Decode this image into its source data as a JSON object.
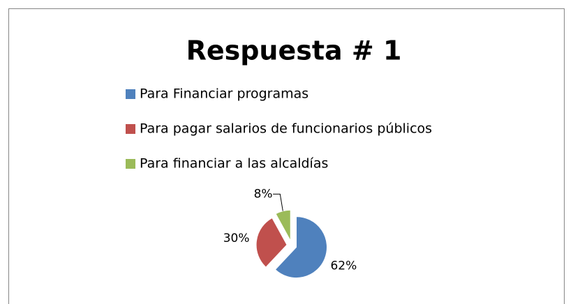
{
  "chart_data": {
    "type": "pie",
    "title": "Respuesta # 1",
    "categories": [
      "Para Financiar programas",
      "Para pagar salarios de funcionarios públicos",
      "Para financiar a las alcaldías"
    ],
    "values": [
      62,
      30,
      8
    ],
    "value_labels": [
      "62%",
      "30%",
      "8%"
    ],
    "colors": [
      "#4f81bd",
      "#c0504d",
      "#9bbb59"
    ]
  }
}
